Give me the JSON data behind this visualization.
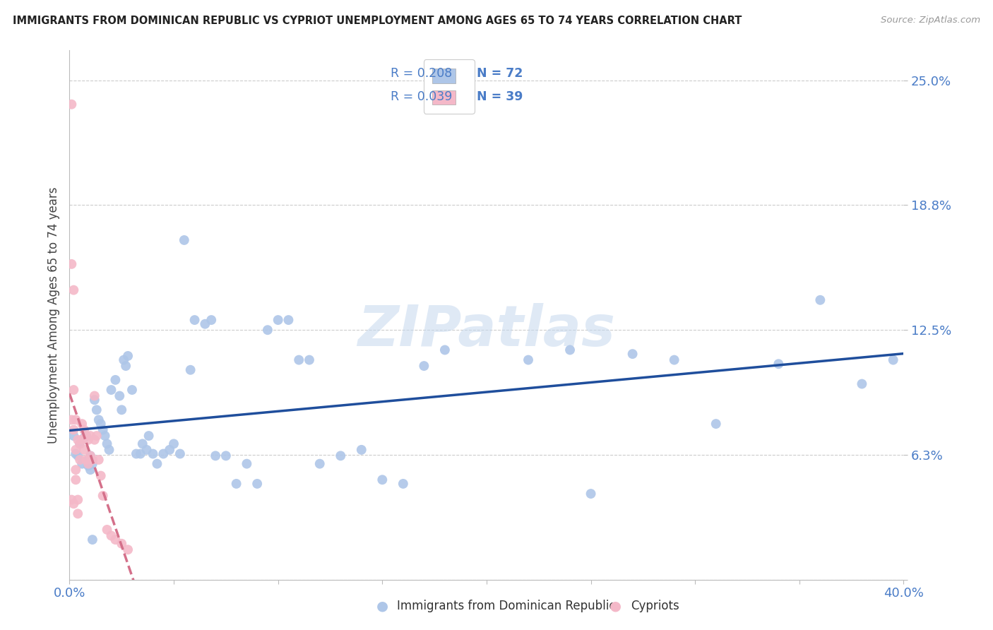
{
  "title": "IMMIGRANTS FROM DOMINICAN REPUBLIC VS CYPRIOT UNEMPLOYMENT AMONG AGES 65 TO 74 YEARS CORRELATION CHART",
  "source": "Source: ZipAtlas.com",
  "ylabel": "Unemployment Among Ages 65 to 74 years",
  "xlim": [
    0.0,
    0.4
  ],
  "ylim": [
    0.0,
    0.265
  ],
  "yticks": [
    0.0,
    0.0625,
    0.125,
    0.1875,
    0.25
  ],
  "ytick_labels": [
    "",
    "6.3%",
    "12.5%",
    "18.8%",
    "25.0%"
  ],
  "xticks": [
    0.0,
    0.05,
    0.1,
    0.15,
    0.2,
    0.25,
    0.3,
    0.35,
    0.4
  ],
  "xtick_labels_show": [
    "0.0%",
    "40.0%"
  ],
  "blue_color": "#aec6e8",
  "blue_line_color": "#1f4e9c",
  "pink_color": "#f4b8c8",
  "pink_line_color": "#d4708a",
  "legend_R1": "R = 0.208",
  "legend_N1": "N = 72",
  "legend_R2": "R = 0.039",
  "legend_N2": "N = 39",
  "series1_label": "Immigrants from Dominican Republic",
  "series2_label": "Cypriots",
  "watermark": "ZIPatlas",
  "blue_x": [
    0.002,
    0.003,
    0.004,
    0.005,
    0.006,
    0.007,
    0.008,
    0.009,
    0.01,
    0.011,
    0.012,
    0.013,
    0.014,
    0.015,
    0.016,
    0.017,
    0.018,
    0.019,
    0.02,
    0.022,
    0.024,
    0.025,
    0.026,
    0.027,
    0.028,
    0.03,
    0.032,
    0.034,
    0.035,
    0.037,
    0.038,
    0.04,
    0.042,
    0.045,
    0.048,
    0.05,
    0.053,
    0.055,
    0.058,
    0.06,
    0.065,
    0.068,
    0.07,
    0.075,
    0.08,
    0.085,
    0.09,
    0.095,
    0.1,
    0.105,
    0.11,
    0.115,
    0.12,
    0.13,
    0.14,
    0.15,
    0.16,
    0.17,
    0.18,
    0.22,
    0.24,
    0.25,
    0.27,
    0.29,
    0.31,
    0.34,
    0.36,
    0.38,
    0.395,
    0.009,
    0.01,
    0.011
  ],
  "blue_y": [
    0.072,
    0.063,
    0.062,
    0.068,
    0.058,
    0.071,
    0.072,
    0.06,
    0.062,
    0.058,
    0.09,
    0.085,
    0.08,
    0.078,
    0.075,
    0.072,
    0.068,
    0.065,
    0.095,
    0.1,
    0.092,
    0.085,
    0.11,
    0.107,
    0.112,
    0.095,
    0.063,
    0.063,
    0.068,
    0.065,
    0.072,
    0.063,
    0.058,
    0.063,
    0.065,
    0.068,
    0.063,
    0.17,
    0.105,
    0.13,
    0.128,
    0.13,
    0.062,
    0.062,
    0.048,
    0.058,
    0.048,
    0.125,
    0.13,
    0.13,
    0.11,
    0.11,
    0.058,
    0.062,
    0.065,
    0.05,
    0.048,
    0.107,
    0.115,
    0.11,
    0.115,
    0.043,
    0.113,
    0.11,
    0.078,
    0.108,
    0.14,
    0.098,
    0.11,
    0.057,
    0.055,
    0.02
  ],
  "pink_x": [
    0.001,
    0.001,
    0.001,
    0.001,
    0.002,
    0.002,
    0.002,
    0.002,
    0.003,
    0.003,
    0.003,
    0.003,
    0.004,
    0.004,
    0.004,
    0.005,
    0.005,
    0.006,
    0.006,
    0.007,
    0.007,
    0.008,
    0.008,
    0.009,
    0.009,
    0.01,
    0.01,
    0.011,
    0.012,
    0.012,
    0.013,
    0.014,
    0.015,
    0.016,
    0.018,
    0.02,
    0.022,
    0.025,
    0.028
  ],
  "pink_y": [
    0.238,
    0.158,
    0.08,
    0.04,
    0.145,
    0.095,
    0.075,
    0.038,
    0.08,
    0.065,
    0.055,
    0.05,
    0.07,
    0.04,
    0.033,
    0.068,
    0.06,
    0.078,
    0.07,
    0.075,
    0.065,
    0.072,
    0.06,
    0.07,
    0.058,
    0.072,
    0.062,
    0.06,
    0.092,
    0.07,
    0.072,
    0.06,
    0.052,
    0.042,
    0.025,
    0.022,
    0.02,
    0.018,
    0.015
  ]
}
